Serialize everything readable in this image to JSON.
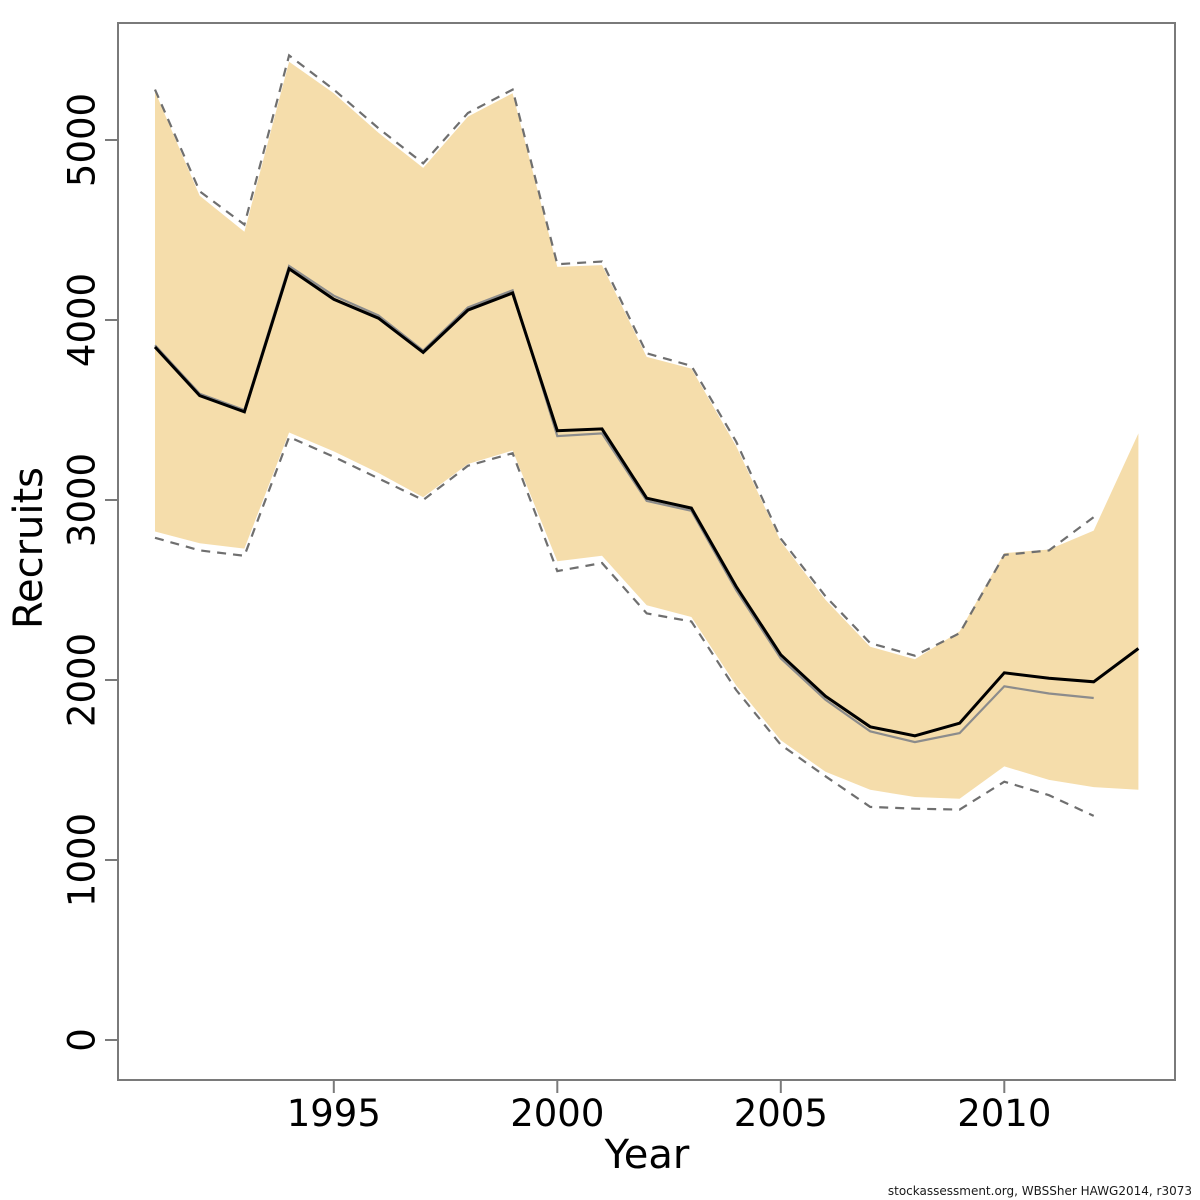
{
  "figure": {
    "footer": "stockassessment.org, WBSSher  HAWG2014, r3073"
  },
  "chart_data": {
    "type": "line",
    "title": "",
    "xlabel": "Year",
    "ylabel": "Recruits",
    "x": [
      1991,
      1992,
      1993,
      1994,
      1995,
      1996,
      1997,
      1998,
      1999,
      2000,
      2001,
      2002,
      2003,
      2004,
      2005,
      2006,
      2007,
      2008,
      2009,
      2010,
      2011,
      2012,
      2013
    ],
    "xticks": [
      1995,
      2000,
      2005,
      2010
    ],
    "yticks": [
      0,
      1000,
      2000,
      3000,
      4000,
      5000
    ],
    "xlim": [
      1990.9,
      2013.8
    ],
    "ylim": [
      -220,
      5650
    ],
    "grid": false,
    "legend_position": "none",
    "band": {
      "name": "ci-band-current",
      "color": "#f5ddab",
      "upper": [
        5270,
        4690,
        4490,
        5435,
        5260,
        5040,
        4845,
        5130,
        5260,
        4295,
        4305,
        3795,
        3730,
        3300,
        2770,
        2445,
        2185,
        2115,
        2270,
        2705,
        2725,
        2830,
        3370
      ],
      "lower": [
        2825,
        2760,
        2730,
        3375,
        3270,
        3150,
        3015,
        3200,
        3275,
        2660,
        2690,
        2415,
        2350,
        1970,
        1665,
        1490,
        1390,
        1350,
        1340,
        1520,
        1445,
        1405,
        1390
      ]
    },
    "series": [
      {
        "name": "ci-upper-previous-dashed",
        "color": "#6f6f6f",
        "style": "dashed",
        "width": 2.2,
        "values": [
          5280,
          4715,
          4530,
          5470,
          5280,
          5065,
          4870,
          5150,
          5280,
          4310,
          4325,
          3815,
          3745,
          3325,
          2785,
          2465,
          2205,
          2135,
          2260,
          2695,
          2720,
          2905,
          null
        ]
      },
      {
        "name": "ci-lower-previous-dashed",
        "color": "#6f6f6f",
        "style": "dashed",
        "width": 2.2,
        "values": [
          2790,
          2720,
          2690,
          3350,
          3240,
          3120,
          3000,
          3190,
          3260,
          2605,
          2650,
          2370,
          2325,
          1945,
          1640,
          1465,
          1295,
          1285,
          1280,
          1435,
          1360,
          1245,
          null
        ]
      },
      {
        "name": "previous-estimate",
        "color": "#8c8c8c",
        "style": "solid",
        "width": 2.2,
        "values": [
          3860,
          3590,
          3500,
          4300,
          4135,
          4025,
          3830,
          4070,
          4165,
          3355,
          3370,
          2995,
          2940,
          2500,
          2120,
          1890,
          1715,
          1655,
          1705,
          1965,
          1925,
          1900,
          null
        ]
      },
      {
        "name": "current-estimate",
        "color": "#000000",
        "style": "solid",
        "width": 3,
        "values": [
          3850,
          3580,
          3490,
          4285,
          4115,
          4010,
          3820,
          4055,
          4150,
          3385,
          3395,
          3010,
          2955,
          2520,
          2140,
          1910,
          1740,
          1690,
          1760,
          2040,
          2010,
          1990,
          2175
        ]
      }
    ],
    "axis_color": "#7a7a7a"
  }
}
